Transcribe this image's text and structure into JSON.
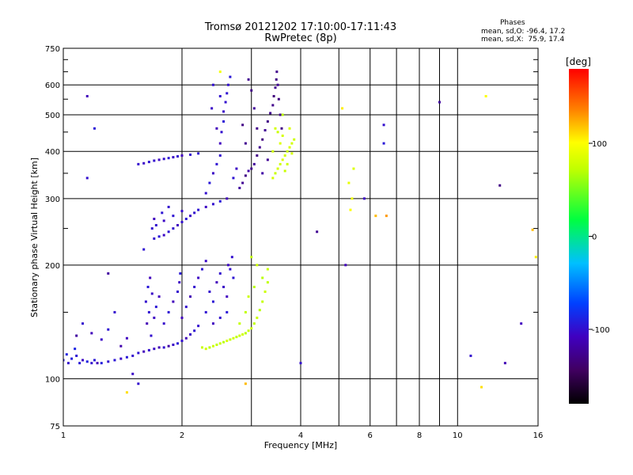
{
  "title_line1": "Tromsø 20121202 17:10:00-17:11:43",
  "title_line2": "RwPretec (8p)",
  "phases": {
    "heading": "Phases",
    "row_o": "mean, sd,O: -96.4, 17.2",
    "row_x": "mean, sd,X:  75.9, 17.4"
  },
  "chart_data": {
    "type": "scatter",
    "xlabel": "Frequency [MHz]",
    "ylabel": "Stationary phase Virtual Height [km]",
    "x_scale": "log",
    "y_scale": "log",
    "xlim": [
      1,
      16
    ],
    "ylim": [
      75,
      750
    ],
    "grid": true,
    "x_ticks": [
      1,
      2,
      4,
      6,
      8,
      10,
      16
    ],
    "x_tick_labels": [
      "1",
      "2",
      "4",
      "6",
      "8",
      "10",
      "16"
    ],
    "x_minor_ticks": [
      3,
      5,
      7,
      9
    ],
    "y_ticks": [
      75,
      100,
      200,
      300,
      400,
      500,
      600,
      750
    ],
    "y_tick_labels": [
      "75",
      "100",
      "200",
      "300",
      "400",
      "500",
      "600",
      "750"
    ],
    "y_minor_ticks": [
      150,
      250,
      350,
      450,
      550,
      650,
      700
    ],
    "colorbar": {
      "label": "[deg]",
      "range": [
        -180,
        180
      ],
      "ticks": [
        -100,
        0,
        100
      ],
      "tick_labels": [
        "-100",
        "0",
        "100"
      ],
      "colormap": "black-purple-blue-cyan-green-yellow-orange-red"
    },
    "series": [
      {
        "mode": "O",
        "points": [
          [
            1.0,
            112,
            -95
          ],
          [
            1.02,
            116,
            -90
          ],
          [
            1.03,
            110,
            -100
          ],
          [
            1.05,
            113,
            -92
          ],
          [
            1.07,
            120,
            -88
          ],
          [
            1.08,
            115,
            -98
          ],
          [
            1.1,
            110,
            -95
          ],
          [
            1.12,
            112,
            -105
          ],
          [
            1.15,
            111,
            -90
          ],
          [
            1.18,
            110,
            -100
          ],
          [
            1.2,
            112,
            -95
          ],
          [
            1.22,
            110,
            -110
          ],
          [
            1.25,
            110,
            -92
          ],
          [
            1.3,
            111,
            -100
          ],
          [
            1.35,
            112,
            -96
          ],
          [
            1.4,
            113,
            -104
          ],
          [
            1.45,
            114,
            -95
          ],
          [
            1.5,
            115,
            -100
          ],
          [
            1.55,
            117,
            -98
          ],
          [
            1.6,
            118,
            -110
          ],
          [
            1.65,
            119,
            -100
          ],
          [
            1.7,
            120,
            -105
          ],
          [
            1.75,
            121,
            -112
          ],
          [
            1.8,
            121,
            -100
          ],
          [
            1.85,
            122,
            -118
          ],
          [
            1.9,
            123,
            -104
          ],
          [
            1.95,
            124,
            -96
          ],
          [
            2.0,
            126,
            -100
          ],
          [
            2.05,
            128,
            -110
          ],
          [
            2.1,
            131,
            -104
          ],
          [
            2.15,
            134,
            -98
          ],
          [
            2.2,
            138,
            -100
          ],
          [
            1.08,
            130,
            -120
          ],
          [
            1.12,
            140,
            -100
          ],
          [
            1.18,
            132,
            -110
          ],
          [
            1.25,
            127,
            -104
          ],
          [
            1.3,
            135,
            -98
          ],
          [
            1.4,
            122,
            -115
          ],
          [
            1.45,
            128,
            -108
          ],
          [
            1.62,
            160,
            -100
          ],
          [
            1.64,
            175,
            -95
          ],
          [
            1.66,
            185,
            -110
          ],
          [
            1.68,
            168,
            -104
          ],
          [
            1.65,
            150,
            -98
          ],
          [
            1.63,
            140,
            -112
          ],
          [
            1.67,
            130,
            -100
          ],
          [
            1.7,
            145,
            -106
          ],
          [
            1.72,
            155,
            -96
          ],
          [
            1.75,
            165,
            -108
          ],
          [
            1.8,
            140,
            -102
          ],
          [
            1.85,
            150,
            -97
          ],
          [
            1.9,
            160,
            -110
          ],
          [
            1.95,
            170,
            -100
          ],
          [
            1.97,
            180,
            -105
          ],
          [
            1.98,
            190,
            -95
          ],
          [
            2.0,
            145,
            -108
          ],
          [
            2.05,
            155,
            -100
          ],
          [
            2.1,
            165,
            -112
          ],
          [
            2.15,
            175,
            -100
          ],
          [
            2.2,
            185,
            -106
          ],
          [
            2.25,
            195,
            -98
          ],
          [
            2.3,
            205,
            -104
          ],
          [
            2.35,
            170,
            -100
          ],
          [
            2.4,
            160,
            -96
          ],
          [
            2.45,
            180,
            -110
          ],
          [
            2.5,
            190,
            -100
          ],
          [
            2.55,
            175,
            -104
          ],
          [
            2.6,
            165,
            -108
          ],
          [
            2.65,
            195,
            -100
          ],
          [
            2.7,
            185,
            -97
          ],
          [
            2.62,
            200,
            -105
          ],
          [
            2.68,
            210,
            -100
          ],
          [
            2.3,
            150,
            -98
          ],
          [
            2.4,
            140,
            -108
          ],
          [
            2.5,
            145,
            -100
          ],
          [
            2.6,
            150,
            -95
          ],
          [
            1.7,
            235,
            -100
          ],
          [
            1.75,
            238,
            -95
          ],
          [
            1.8,
            240,
            -105
          ],
          [
            1.85,
            245,
            -98
          ],
          [
            1.9,
            250,
            -100
          ],
          [
            1.95,
            255,
            -108
          ],
          [
            2.0,
            260,
            -100
          ],
          [
            2.05,
            265,
            -96
          ],
          [
            2.1,
            270,
            -104
          ],
          [
            2.15,
            275,
            -100
          ],
          [
            2.2,
            280,
            -98
          ],
          [
            2.3,
            285,
            -106
          ],
          [
            2.4,
            290,
            -100
          ],
          [
            2.5,
            295,
            -95
          ],
          [
            2.6,
            300,
            -110
          ],
          [
            1.72,
            255,
            -100
          ],
          [
            1.8,
            262,
            -105
          ],
          [
            1.9,
            270,
            -98
          ],
          [
            2.0,
            278,
            -102
          ],
          [
            1.85,
            285,
            -100
          ],
          [
            1.78,
            275,
            -97
          ],
          [
            1.7,
            265,
            -108
          ],
          [
            1.68,
            250,
            -100
          ],
          [
            1.55,
            370,
            -100
          ],
          [
            1.6,
            372,
            -104
          ],
          [
            1.65,
            375,
            -98
          ],
          [
            1.7,
            378,
            -100
          ],
          [
            1.75,
            380,
            -106
          ],
          [
            1.8,
            382,
            -100
          ],
          [
            1.85,
            384,
            -96
          ],
          [
            1.9,
            386,
            -104
          ],
          [
            1.95,
            388,
            -100
          ],
          [
            2.0,
            390,
            -108
          ],
          [
            2.1,
            392,
            -100
          ],
          [
            2.2,
            395,
            -98
          ],
          [
            2.3,
            310,
            -100
          ],
          [
            2.35,
            330,
            -95
          ],
          [
            2.4,
            350,
            -105
          ],
          [
            2.45,
            370,
            -98
          ],
          [
            2.5,
            390,
            -100
          ],
          [
            2.5,
            420,
            -108
          ],
          [
            2.52,
            450,
            -100
          ],
          [
            2.55,
            480,
            -96
          ],
          [
            2.55,
            510,
            -104
          ],
          [
            2.58,
            540,
            -100
          ],
          [
            2.6,
            570,
            -98
          ],
          [
            2.62,
            600,
            -100
          ],
          [
            2.65,
            630,
            -95
          ],
          [
            2.45,
            460,
            -110
          ],
          [
            2.5,
            560,
            -100
          ],
          [
            2.38,
            520,
            -104
          ],
          [
            2.4,
            600,
            -100
          ],
          [
            2.7,
            340,
            -98
          ],
          [
            2.75,
            360,
            -105
          ],
          [
            2.8,
            320,
            -120
          ],
          [
            2.85,
            330,
            -125
          ],
          [
            2.9,
            345,
            -130
          ],
          [
            2.95,
            355,
            -118
          ],
          [
            3.0,
            360,
            -128
          ],
          [
            3.05,
            370,
            -122
          ],
          [
            3.1,
            390,
            -130
          ],
          [
            3.15,
            410,
            -126
          ],
          [
            3.2,
            430,
            -132
          ],
          [
            3.25,
            455,
            -124
          ],
          [
            3.3,
            480,
            -130
          ],
          [
            3.35,
            505,
            -126
          ],
          [
            3.4,
            530,
            -128
          ],
          [
            3.42,
            560,
            -134
          ],
          [
            3.45,
            590,
            -126
          ],
          [
            3.47,
            620,
            -130
          ],
          [
            3.48,
            650,
            -128
          ],
          [
            3.5,
            600,
            -124
          ],
          [
            3.52,
            550,
            -132
          ],
          [
            3.55,
            500,
            -126
          ],
          [
            3.58,
            460,
            -130
          ],
          [
            3.1,
            460,
            -128
          ],
          [
            3.05,
            520,
            -122
          ],
          [
            3.0,
            580,
            -130
          ],
          [
            2.95,
            620,
            -126
          ],
          [
            3.2,
            350,
            -118
          ],
          [
            3.3,
            380,
            -124
          ],
          [
            2.9,
            420,
            -126
          ],
          [
            2.85,
            470,
            -130
          ],
          [
            1.15,
            560,
            -110
          ],
          [
            1.15,
            340,
            -100
          ],
          [
            1.2,
            460,
            -95
          ],
          [
            1.3,
            190,
            -120
          ],
          [
            1.35,
            150,
            -100
          ],
          [
            1.5,
            103,
            -104
          ],
          [
            1.55,
            97,
            -100
          ],
          [
            1.6,
            220,
            -98
          ],
          [
            6.5,
            470,
            -100
          ],
          [
            5.2,
            200,
            -110
          ],
          [
            5.8,
            300,
            -105
          ],
          [
            9.0,
            540,
            -120
          ],
          [
            10.8,
            115,
            -100
          ],
          [
            12.8,
            325,
            -130
          ],
          [
            14.5,
            140,
            -108
          ],
          [
            4.0,
            110,
            -100
          ],
          [
            6.5,
            420,
            -95
          ],
          [
            13.2,
            110,
            -112
          ],
          [
            4.4,
            245,
            -125
          ]
        ]
      },
      {
        "mode": "X",
        "points": [
          [
            2.25,
            121,
            75
          ],
          [
            2.3,
            120,
            80
          ],
          [
            2.35,
            121,
            70
          ],
          [
            2.4,
            122,
            78
          ],
          [
            2.45,
            123,
            72
          ],
          [
            2.5,
            124,
            76
          ],
          [
            2.55,
            125,
            70
          ],
          [
            2.6,
            126,
            82
          ],
          [
            2.65,
            127,
            74
          ],
          [
            2.7,
            128,
            78
          ],
          [
            2.75,
            129,
            72
          ],
          [
            2.8,
            130,
            76
          ],
          [
            2.85,
            131,
            80
          ],
          [
            2.9,
            132,
            70
          ],
          [
            2.95,
            134,
            74
          ],
          [
            3.0,
            136,
            78
          ],
          [
            3.05,
            140,
            72
          ],
          [
            3.1,
            145,
            76
          ],
          [
            3.15,
            152,
            70
          ],
          [
            3.2,
            160,
            74
          ],
          [
            3.25,
            170,
            78
          ],
          [
            3.3,
            180,
            72
          ],
          [
            3.3,
            195,
            76
          ],
          [
            3.2,
            185,
            70
          ],
          [
            3.0,
            210,
            74
          ],
          [
            3.1,
            200,
            78
          ],
          [
            2.9,
            150,
            72
          ],
          [
            2.95,
            165,
            76
          ],
          [
            3.05,
            175,
            70
          ],
          [
            2.8,
            140,
            74
          ],
          [
            3.4,
            340,
            80
          ],
          [
            3.45,
            350,
            75
          ],
          [
            3.5,
            360,
            82
          ],
          [
            3.55,
            370,
            78
          ],
          [
            3.6,
            380,
            85
          ],
          [
            3.65,
            390,
            80
          ],
          [
            3.7,
            400,
            76
          ],
          [
            3.75,
            410,
            84
          ],
          [
            3.8,
            420,
            80
          ],
          [
            3.85,
            430,
            78
          ],
          [
            3.6,
            440,
            82
          ],
          [
            3.5,
            450,
            76
          ],
          [
            3.45,
            460,
            80
          ],
          [
            3.55,
            420,
            85
          ],
          [
            3.7,
            370,
            78
          ],
          [
            3.8,
            395,
            82
          ],
          [
            3.65,
            355,
            76
          ],
          [
            3.4,
            400,
            80
          ],
          [
            3.75,
            460,
            84
          ],
          [
            3.6,
            500,
            70
          ],
          [
            5.3,
            330,
            90
          ],
          [
            5.4,
            300,
            95
          ],
          [
            5.35,
            280,
            100
          ],
          [
            5.45,
            360,
            85
          ],
          [
            6.2,
            270,
            120
          ],
          [
            6.6,
            270,
            130
          ],
          [
            11.8,
            560,
            100
          ],
          [
            11.5,
            95,
            110
          ],
          [
            15.5,
            248,
            120
          ],
          [
            15.8,
            210,
            105
          ],
          [
            1.45,
            92,
            110
          ],
          [
            2.9,
            97,
            120
          ],
          [
            5.1,
            520,
            105
          ],
          [
            2.5,
            650,
            95
          ]
        ]
      }
    ]
  }
}
